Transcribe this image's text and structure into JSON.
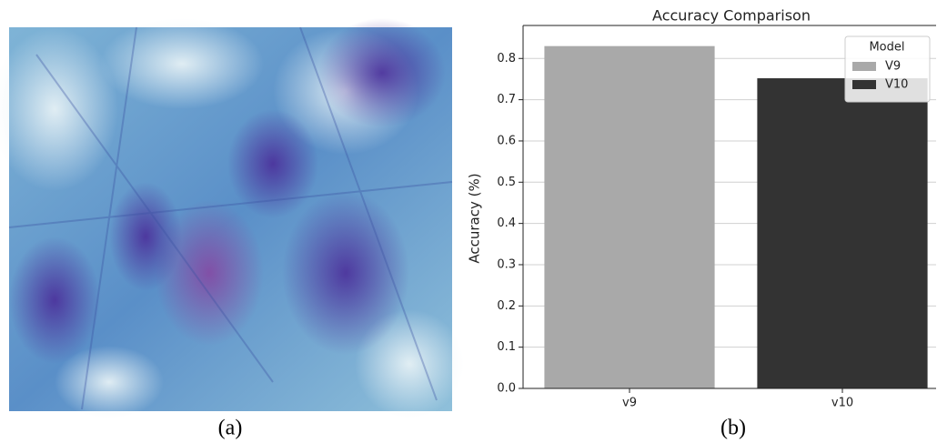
{
  "chart_data": {
    "type": "bar",
    "title": "Accuracy Comparison",
    "y_label": "Accuracy (%)",
    "categories": [
      "v9",
      "v10"
    ],
    "series": [
      {
        "name": "V9",
        "color": "#a9a9a9",
        "values": [
          0.83,
          null
        ]
      },
      {
        "name": "V10",
        "color": "#333333",
        "values": [
          null,
          0.752
        ]
      }
    ],
    "legend_title": "Model",
    "legend": "upper right",
    "ylim": [
      0,
      0.88
    ],
    "yticks": [
      {
        "value": 0,
        "label": "0.0"
      },
      0.1,
      0.2,
      0.3,
      0.4,
      0.5,
      0.6,
      0.7,
      0.8
    ],
    "grid": true
  },
  "captions": [
    "(a)",
    "(b)"
  ]
}
